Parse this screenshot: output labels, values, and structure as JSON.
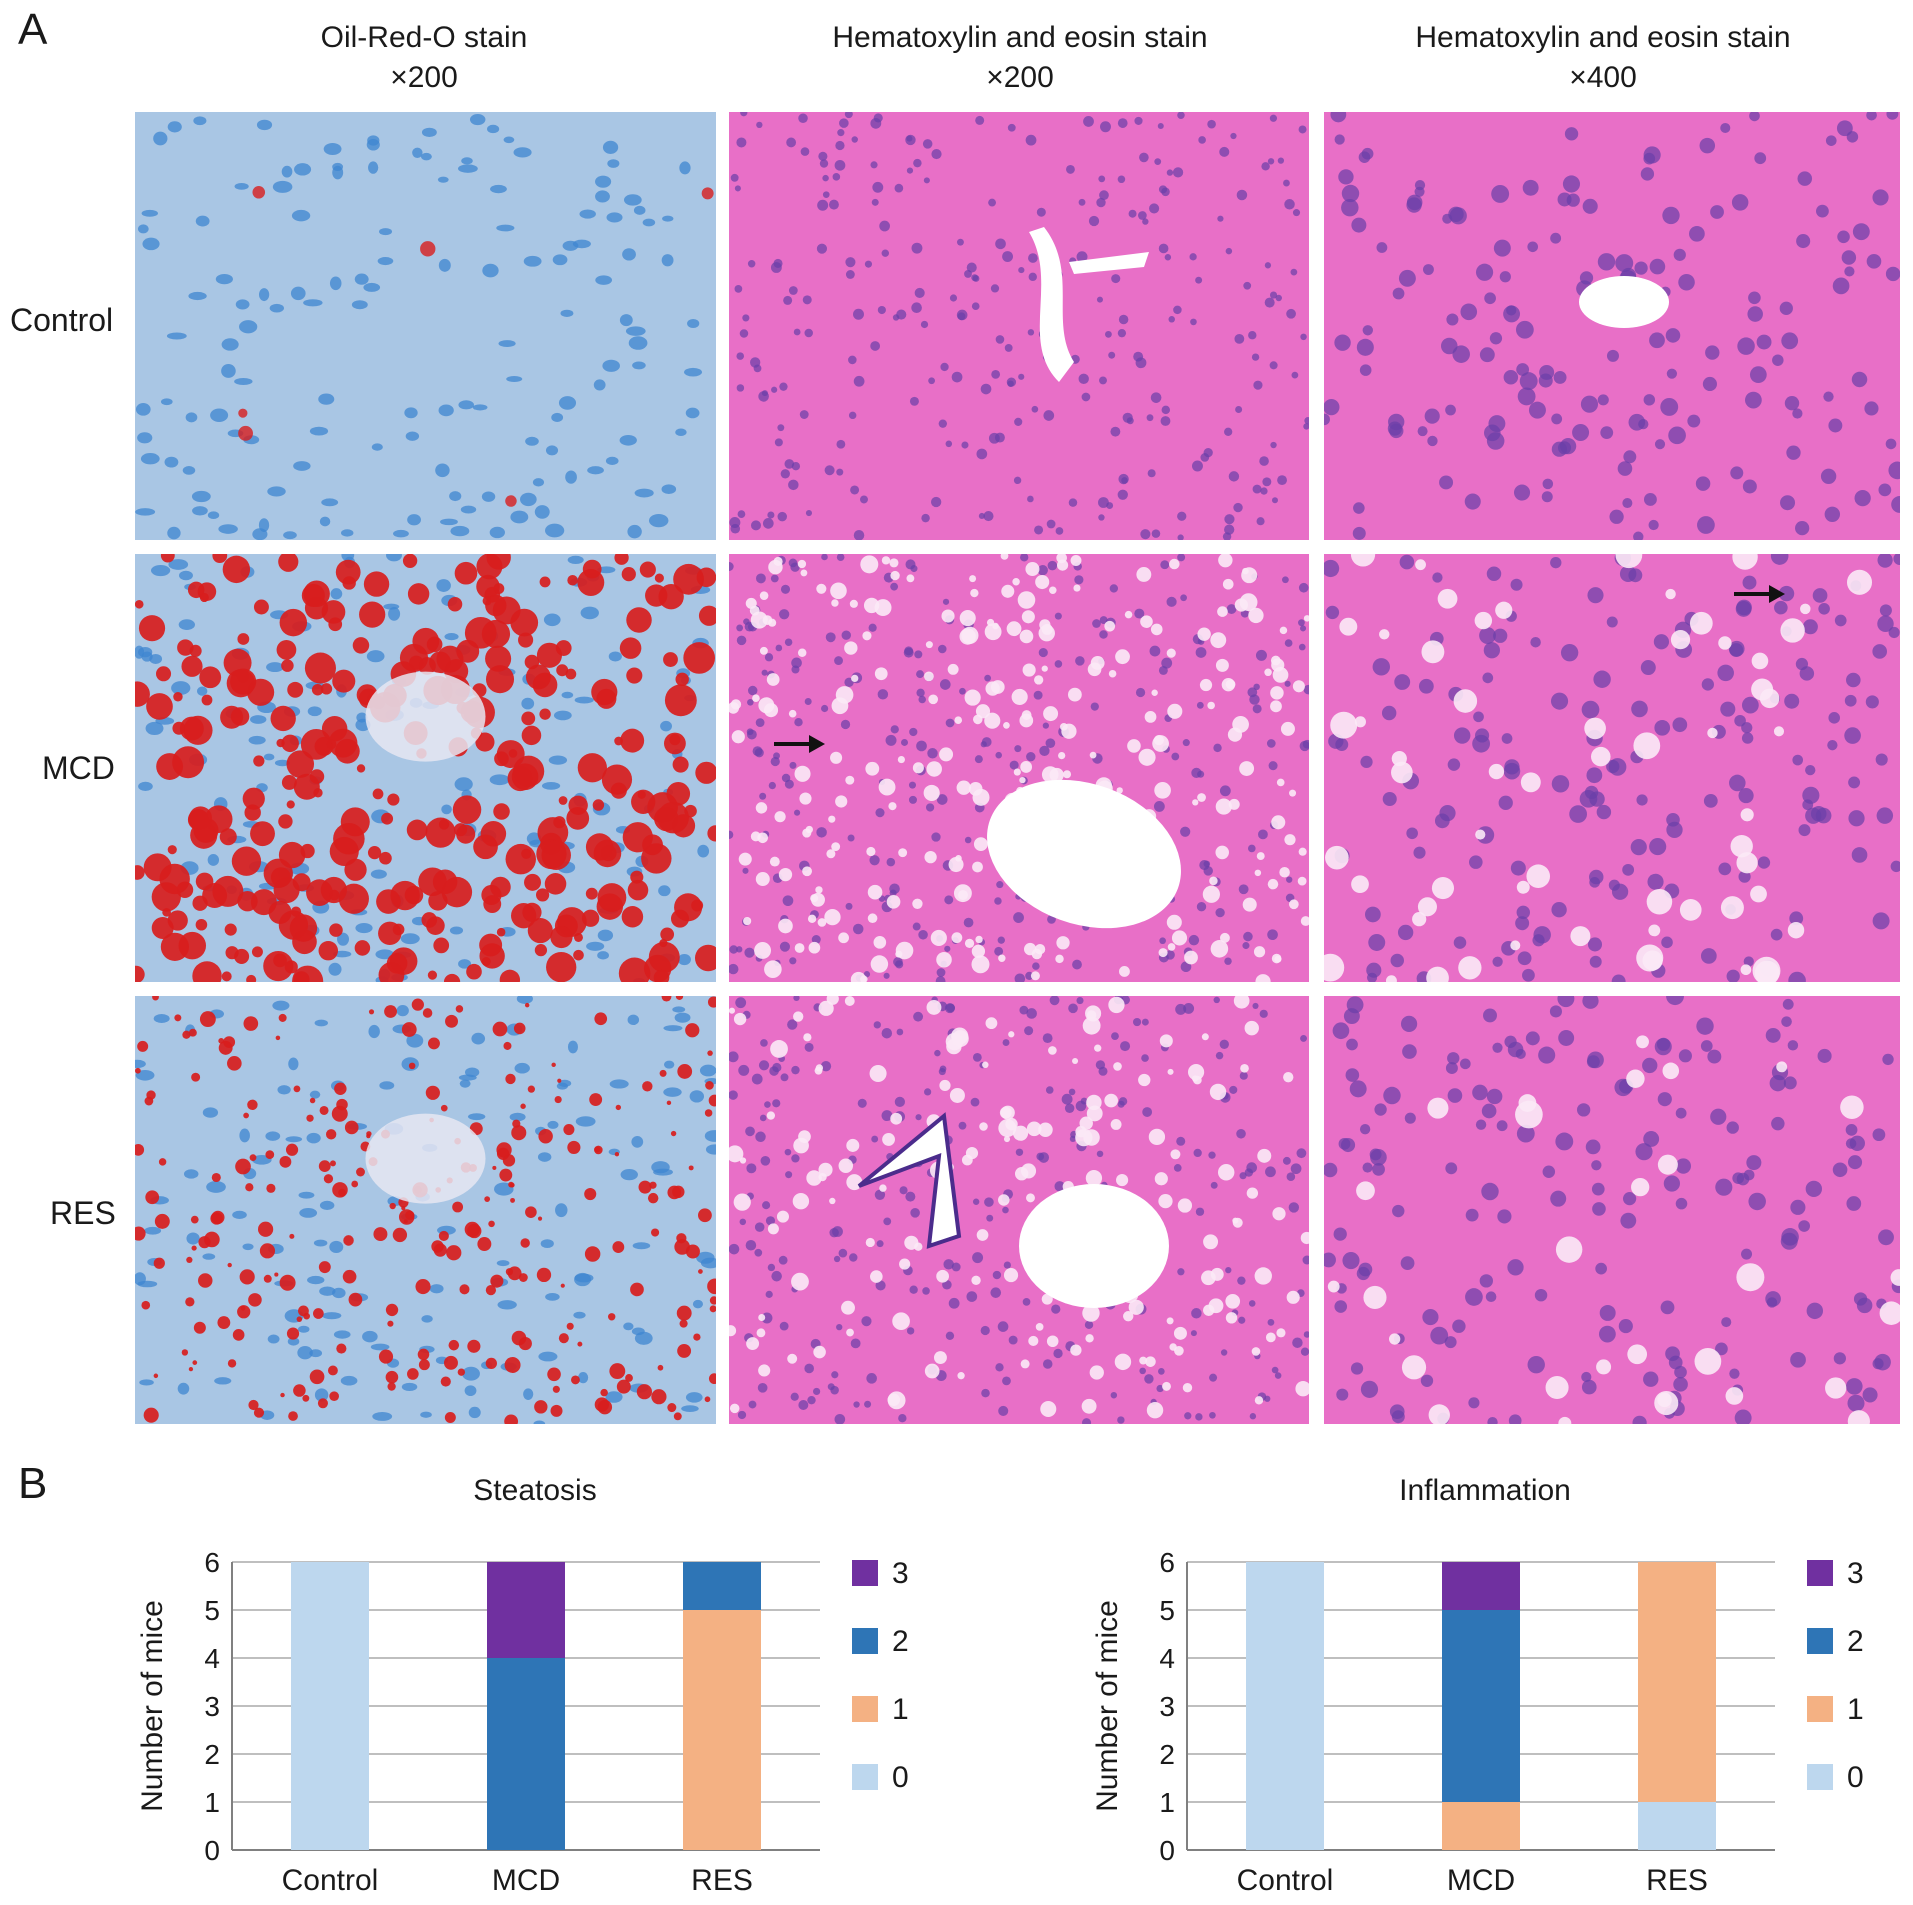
{
  "panel_a": {
    "letter": "A",
    "columns": [
      {
        "line1": "Oil-Red-O stain",
        "line2": "×200"
      },
      {
        "line1": "Hematoxylin and eosin stain",
        "line2": "×200"
      },
      {
        "line1": "Hematoxylin and eosin stain",
        "line2": "×400"
      }
    ],
    "rows": [
      "Control",
      "MCD",
      "RES"
    ]
  },
  "panel_b": {
    "letter": "B"
  },
  "colors": {
    "grade_3": "#7030a0",
    "grade_2": "#2e75b6",
    "grade_1": "#f4b183",
    "grade_0": "#bdd7ee",
    "grid": "#bfbfbf",
    "oil_bg": "#a9c6e4",
    "oil_nucleus": "#3f86d0",
    "oil_lipid": "#d81d1d",
    "he_bg": "#e86fc7",
    "he_nucleus": "#6a3fa8",
    "he_vacuole": "#fbe9f6"
  },
  "chart_data": [
    {
      "type": "bar",
      "stacked": true,
      "title": "Steatosis",
      "ylabel": "Number of mice",
      "xlabel": "",
      "categories": [
        "Control",
        "MCD",
        "RES"
      ],
      "ylim": [
        0,
        6
      ],
      "yticks": [
        "0",
        "1",
        "2",
        "3",
        "4",
        "5",
        "6"
      ],
      "legend_position": "right",
      "series": [
        {
          "name": "0",
          "values": [
            6,
            0,
            0
          ]
        },
        {
          "name": "1",
          "values": [
            0,
            0,
            5
          ]
        },
        {
          "name": "2",
          "values": [
            0,
            4,
            1
          ]
        },
        {
          "name": "3",
          "values": [
            0,
            2,
            0
          ]
        }
      ],
      "grid": true
    },
    {
      "type": "bar",
      "stacked": true,
      "title": "Inflammation",
      "ylabel": "Number of mice",
      "xlabel": "",
      "categories": [
        "Control",
        "MCD",
        "RES"
      ],
      "ylim": [
        0,
        6
      ],
      "yticks": [
        "0",
        "1",
        "2",
        "3",
        "4",
        "5",
        "6"
      ],
      "legend_position": "right",
      "series": [
        {
          "name": "0",
          "values": [
            6,
            0,
            1
          ]
        },
        {
          "name": "1",
          "values": [
            0,
            1,
            5
          ]
        },
        {
          "name": "2",
          "values": [
            0,
            4,
            0
          ]
        },
        {
          "name": "3",
          "values": [
            0,
            1,
            0
          ]
        }
      ],
      "grid": true
    }
  ]
}
